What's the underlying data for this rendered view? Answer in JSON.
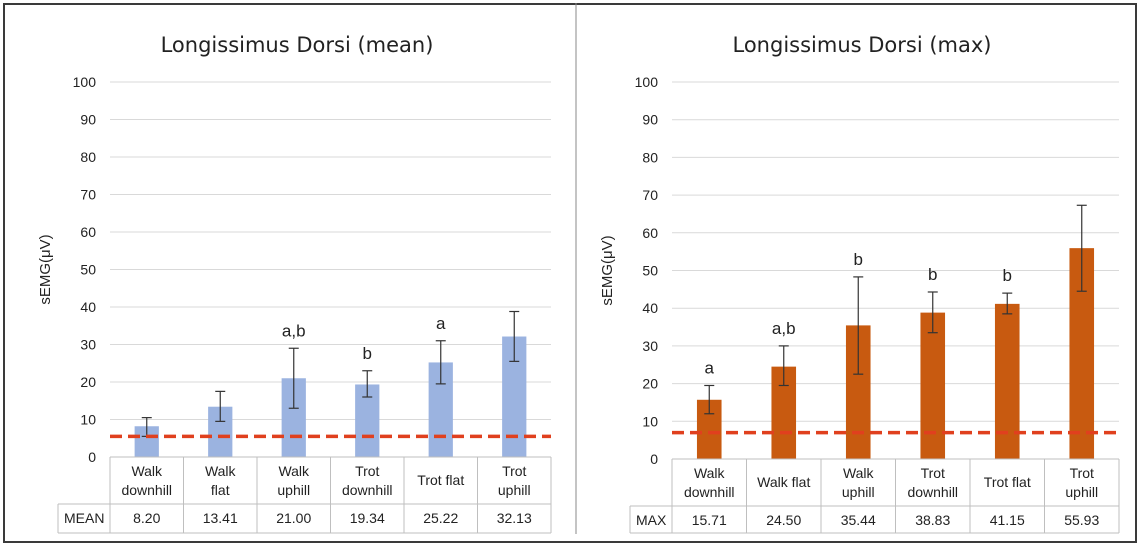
{
  "chart_data": [
    {
      "type": "bar",
      "title": "Longissimus Dorsi (mean)",
      "ylabel": "sEMG(μV)",
      "ylim": [
        0,
        100
      ],
      "yticks": [
        0,
        10,
        20,
        30,
        40,
        50,
        60,
        70,
        80,
        90,
        100
      ],
      "categories": [
        [
          "Walk",
          "downhill"
        ],
        [
          "Walk",
          "flat"
        ],
        [
          "Walk",
          "uphill"
        ],
        [
          "Trot",
          "downhill"
        ],
        [
          "Trot flat"
        ],
        [
          "Trot",
          "uphill"
        ]
      ],
      "values": [
        8.2,
        13.41,
        21.0,
        19.34,
        25.22,
        32.13
      ],
      "error_low": [
        5.5,
        9.5,
        13.0,
        16.0,
        19.5,
        25.5
      ],
      "error_high": [
        10.5,
        17.5,
        29.0,
        23.0,
        31.0,
        38.8
      ],
      "significance": [
        "",
        "",
        "a,b",
        "b",
        "a",
        ""
      ],
      "reference_line": 5.5,
      "bar_color": "#9bb3e0",
      "line_color": "#e0401e",
      "grid": true,
      "table": {
        "row_label": "MEAN",
        "cells": [
          "8.20",
          "13.41",
          "21.00",
          "19.34",
          "25.22",
          "32.13"
        ]
      }
    },
    {
      "type": "bar",
      "title": "Longissimus Dorsi (max)",
      "ylabel": "sEMG(μV)",
      "ylim": [
        0,
        100
      ],
      "yticks": [
        0,
        10,
        20,
        30,
        40,
        50,
        60,
        70,
        80,
        90,
        100
      ],
      "categories": [
        [
          "Walk",
          "downhill"
        ],
        [
          "Walk flat"
        ],
        [
          "Walk",
          "uphill"
        ],
        [
          "Trot",
          "downhill"
        ],
        [
          "Trot flat"
        ],
        [
          "Trot",
          "uphill"
        ]
      ],
      "values": [
        15.71,
        24.5,
        35.44,
        38.83,
        41.15,
        55.93
      ],
      "error_low": [
        12.0,
        19.5,
        22.5,
        33.5,
        38.5,
        44.5
      ],
      "error_high": [
        19.5,
        30.0,
        48.3,
        44.3,
        44.0,
        67.3
      ],
      "significance": [
        "a",
        "a,b",
        "b",
        "b",
        "b",
        ""
      ],
      "reference_line": 7,
      "bar_color": "#c85a10",
      "line_color": "#e0401e",
      "grid": true,
      "table": {
        "row_label": "MAX",
        "cells": [
          "15.71",
          "24.50",
          "35.44",
          "38.83",
          "41.15",
          "55.93"
        ]
      }
    }
  ]
}
